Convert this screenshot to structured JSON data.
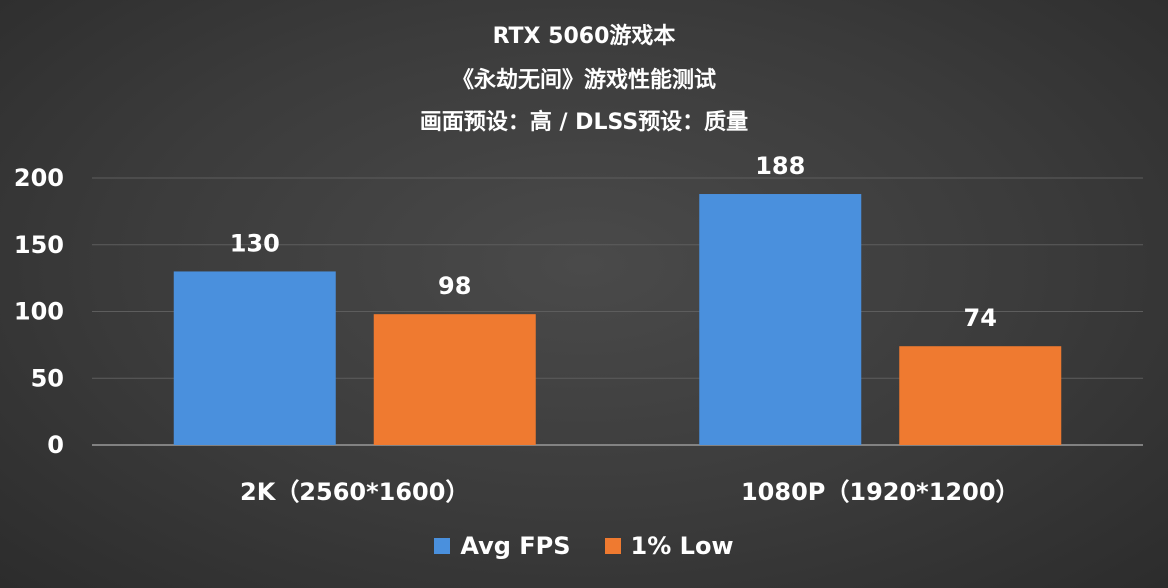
{
  "chart_data": {
    "type": "bar",
    "title_lines": [
      "RTX 5060游戏本",
      "《永劫无间》游戏性能测试",
      "画面预设：高 / DLSS预设：质量"
    ],
    "categories": [
      "2K（2560*1600）",
      "1080P（1920*1200）"
    ],
    "series": [
      {
        "name": "Avg FPS",
        "values": [
          130,
          188
        ],
        "color": "#4a90dd"
      },
      {
        "name": "1% Low",
        "values": [
          98,
          74
        ],
        "color": "#ef7a30"
      }
    ],
    "ylim": [
      0,
      200
    ],
    "yticks": [
      0,
      50,
      100,
      150,
      200
    ],
    "grid": true,
    "legend_position": "bottom"
  }
}
